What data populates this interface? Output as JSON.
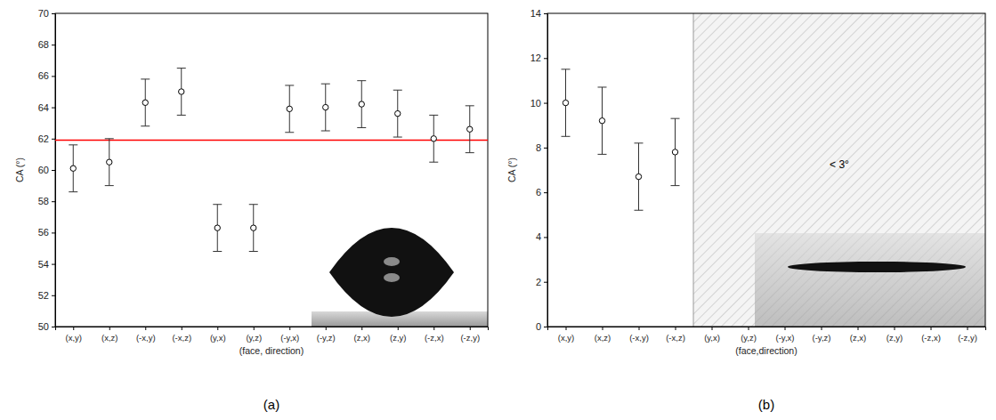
{
  "chart_data": [
    {
      "type": "scatter",
      "panel_label": "(a)",
      "x_label": "(face, direction)",
      "y_label": "CA (°)",
      "categories": [
        "(x,y)",
        "(x,z)",
        "(-x,y)",
        "(-x,z)",
        "(y,x)",
        "(y,z)",
        "(-y,x)",
        "(-y,z)",
        "(z,x)",
        "(z,y)",
        "(-z,x)",
        "(-z,y)"
      ],
      "values": [
        60.1,
        60.5,
        64.3,
        65.0,
        56.3,
        56.3,
        63.9,
        64.0,
        64.2,
        63.6,
        62.0,
        62.6
      ],
      "errors": [
        1.5,
        1.5,
        1.5,
        1.5,
        1.5,
        1.5,
        1.5,
        1.5,
        1.5,
        1.5,
        1.5,
        1.5
      ],
      "ylim": [
        50,
        70
      ],
      "yticks": [
        50,
        52,
        54,
        56,
        58,
        60,
        62,
        64,
        66,
        68,
        70
      ],
      "reference_line": {
        "value": 61.9,
        "color": "#ff0000"
      },
      "marker": "circle",
      "color": "#000000"
    },
    {
      "type": "scatter",
      "panel_label": "(b)",
      "x_label": "(face,direction)",
      "y_label": "CA (°)",
      "categories": [
        "(x,y)",
        "(x,z)",
        "(-x,y)",
        "(-x,z)",
        "(y,x)",
        "(y,z)",
        "(-y,x)",
        "(-y,z)",
        "(z,x)",
        "(z,y)",
        "(-z,x)",
        "(-z,y)"
      ],
      "values": [
        10.0,
        9.2,
        6.7,
        7.8,
        null,
        null,
        null,
        null,
        null,
        null,
        null,
        null
      ],
      "errors": [
        1.5,
        1.5,
        1.5,
        1.5,
        null,
        null,
        null,
        null,
        null,
        null,
        null,
        null
      ],
      "ylim": [
        0,
        14
      ],
      "yticks": [
        0,
        2,
        4,
        6,
        8,
        10,
        12,
        14
      ],
      "annotations": [
        {
          "text": "< 3°",
          "y": 7.2
        }
      ],
      "marker": "circle",
      "color": "#000000"
    }
  ]
}
